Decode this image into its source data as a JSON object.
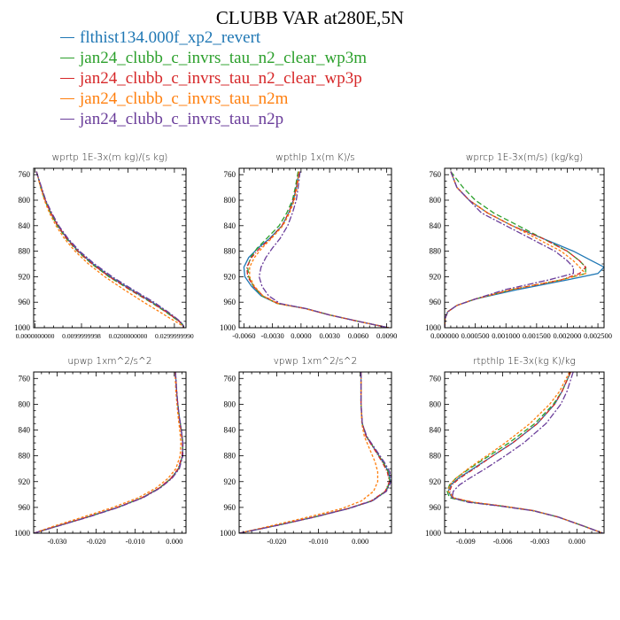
{
  "title": "CLUBB VAR at280E,5N",
  "colors": [
    "#1f77b4",
    "#2ca02c",
    "#d62728",
    "#ff7f0e",
    "#6a3d9a"
  ],
  "legend": [
    {
      "label": "flthist134.000f_xp2_revert",
      "color": "#1f77b4"
    },
    {
      "label": "jan24_clubb_c_invrs_tau_n2_clear_wp3m",
      "color": "#2ca02c"
    },
    {
      "label": "jan24_clubb_c_invrs_tau_n2_clear_wp3p",
      "color": "#d62728"
    },
    {
      "label": "jan24_clubb_c_invrs_tau_n2m",
      "color": "#ff7f0e"
    },
    {
      "label": "jan24_clubb_c_invrs_tau_n2p",
      "color": "#6a3d9a"
    }
  ],
  "chart_data": [
    {
      "type": "line",
      "title": "wprtp   1E-3x(m kg)/(s kg)",
      "xlim": [
        -0.0003,
        0.0325
      ],
      "ylim": [
        1000,
        750
      ],
      "yticks": [
        760,
        800,
        840,
        880,
        920,
        960,
        1000
      ],
      "ytick_labels": [
        "760",
        "800",
        "840",
        "880",
        "920",
        "960",
        "1000"
      ],
      "xticks": [
        0,
        0.01,
        0.02,
        0.03
      ],
      "xtick_labels": [
        "0.0000000000",
        "0.0099999998",
        "0.0200000000",
        "0.0299999990"
      ],
      "y": [
        755,
        760,
        780,
        800,
        820,
        840,
        860,
        880,
        900,
        920,
        940,
        960,
        975,
        985,
        990,
        995,
        1000
      ],
      "series": [
        {
          "color": "#1f77b4",
          "values": [
            0.0003,
            0.0005,
            0.0013,
            0.0022,
            0.0034,
            0.0049,
            0.0069,
            0.0093,
            0.0125,
            0.0162,
            0.0206,
            0.0252,
            0.0283,
            0.0302,
            0.0311,
            0.0318,
            0.032
          ]
        },
        {
          "color": "#2ca02c",
          "values": [
            0.0003,
            0.0005,
            0.0012,
            0.0021,
            0.0033,
            0.0048,
            0.0067,
            0.0091,
            0.0122,
            0.0159,
            0.0203,
            0.0249,
            0.0281,
            0.03,
            0.031,
            0.0317,
            0.032
          ]
        },
        {
          "color": "#d62728",
          "values": [
            0.0003,
            0.0005,
            0.0013,
            0.0022,
            0.0034,
            0.0049,
            0.0068,
            0.0092,
            0.0123,
            0.016,
            0.0204,
            0.025,
            0.0282,
            0.0301,
            0.031,
            0.0317,
            0.032
          ]
        },
        {
          "color": "#ff7f0e",
          "values": [
            0.0003,
            0.0005,
            0.0012,
            0.002,
            0.0031,
            0.0045,
            0.0063,
            0.0086,
            0.0115,
            0.015,
            0.0191,
            0.0234,
            0.0268,
            0.029,
            0.0302,
            0.0313,
            0.032
          ]
        },
        {
          "color": "#6a3d9a",
          "values": [
            0.0003,
            0.0005,
            0.0014,
            0.0023,
            0.0036,
            0.0051,
            0.0071,
            0.0096,
            0.0128,
            0.0166,
            0.021,
            0.0256,
            0.0286,
            0.0304,
            0.0312,
            0.0318,
            0.032
          ]
        }
      ]
    },
    {
      "type": "line",
      "title": "wpthlp   1x(m K)/s",
      "xlim": [
        -0.0065,
        0.0095
      ],
      "ylim": [
        1000,
        750
      ],
      "yticks": [
        760,
        800,
        840,
        880,
        920,
        960,
        1000
      ],
      "ytick_labels": [
        "760",
        "800",
        "840",
        "880",
        "920",
        "960",
        "1000"
      ],
      "xticks": [
        -0.006,
        -0.003,
        0,
        0.003,
        0.006,
        0.009
      ],
      "xtick_labels": [
        "-0.0060",
        "-0.0030",
        "0.0000",
        "0.0030",
        "0.0060",
        "0.0090"
      ],
      "y": [
        755,
        780,
        800,
        820,
        840,
        860,
        875,
        890,
        905,
        920,
        935,
        950,
        962,
        970,
        980,
        990,
        1000
      ],
      "series": [
        {
          "color": "#1f77b4",
          "values": [
            -0.0002,
            -0.0005,
            -0.0008,
            -0.0013,
            -0.002,
            -0.0033,
            -0.0045,
            -0.0055,
            -0.006,
            -0.0059,
            -0.0052,
            -0.0042,
            -0.0025,
            0.0005,
            0.003,
            0.006,
            0.0092
          ]
        },
        {
          "color": "#2ca02c",
          "values": [
            -0.0003,
            -0.0006,
            -0.0009,
            -0.0015,
            -0.0023,
            -0.0036,
            -0.0046,
            -0.0053,
            -0.0056,
            -0.0055,
            -0.005,
            -0.0041,
            -0.0025,
            0.0005,
            0.003,
            0.006,
            0.0092
          ]
        },
        {
          "color": "#d62728",
          "values": [
            -0.0002,
            -0.0005,
            -0.0008,
            -0.0013,
            -0.002,
            -0.0032,
            -0.0043,
            -0.0052,
            -0.0057,
            -0.0056,
            -0.005,
            -0.004,
            -0.0024,
            0.0005,
            0.003,
            0.006,
            0.0092
          ]
        },
        {
          "color": "#ff7f0e",
          "values": [
            -0.0002,
            -0.0004,
            -0.0007,
            -0.0012,
            -0.0019,
            -0.0031,
            -0.0041,
            -0.0049,
            -0.0054,
            -0.0054,
            -0.0049,
            -0.004,
            -0.0025,
            0.0004,
            0.003,
            0.006,
            0.0092
          ]
        },
        {
          "color": "#6a3d9a",
          "values": [
            -0.0001,
            -0.0003,
            -0.0005,
            -0.0009,
            -0.0014,
            -0.0022,
            -0.003,
            -0.0037,
            -0.0042,
            -0.0044,
            -0.0041,
            -0.0034,
            -0.0022,
            0.0005,
            0.003,
            0.006,
            0.0092
          ]
        }
      ]
    },
    {
      "type": "line",
      "title": "wprcp   1E-3x(m/s) (kg/kg)",
      "xlim": [
        0,
        0.0026
      ],
      "ylim": [
        1000,
        750
      ],
      "yticks": [
        760,
        800,
        840,
        880,
        920,
        960,
        1000
      ],
      "ytick_labels": [
        "760",
        "800",
        "840",
        "880",
        "920",
        "960",
        "1000"
      ],
      "xticks": [
        0,
        0.0005,
        0.001,
        0.0015,
        0.002,
        0.0025
      ],
      "xtick_labels": [
        "0.000000",
        "0.000500",
        "0.001000",
        "0.001500",
        "0.002000",
        "0.002500"
      ],
      "y": [
        755,
        780,
        800,
        820,
        840,
        860,
        880,
        895,
        905,
        915,
        925,
        940,
        955,
        965,
        975,
        985,
        1000
      ],
      "series": [
        {
          "color": "#1f77b4",
          "values": [
            0.0001,
            0.0002,
            0.0004,
            0.0007,
            0.0011,
            0.0016,
            0.0021,
            0.0024,
            0.0026,
            0.0025,
            0.002,
            0.0012,
            0.0005,
            0.0002,
            5e-05,
            1e-05,
            0
          ]
        },
        {
          "color": "#2ca02c",
          "values": [
            0.0001,
            0.0003,
            0.0005,
            0.0008,
            0.0012,
            0.0016,
            0.002,
            0.0022,
            0.0023,
            0.0023,
            0.0019,
            0.0011,
            0.0005,
            0.0002,
            5e-05,
            1e-05,
            0
          ]
        },
        {
          "color": "#d62728",
          "values": [
            0.0001,
            0.0002,
            0.0004,
            0.0007,
            0.0011,
            0.0016,
            0.002,
            0.0022,
            0.0023,
            0.0022,
            0.0019,
            0.0011,
            0.0005,
            0.0002,
            5e-05,
            1e-05,
            0
          ]
        },
        {
          "color": "#ff7f0e",
          "values": [
            0.0001,
            0.0002,
            0.0004,
            0.0007,
            0.0011,
            0.0015,
            0.0019,
            0.0021,
            0.0022,
            0.0023,
            0.0019,
            0.0011,
            0.0005,
            0.0002,
            5e-05,
            1e-05,
            0
          ]
        },
        {
          "color": "#6a3d9a",
          "values": [
            0.0001,
            0.0002,
            0.0004,
            0.0006,
            0.001,
            0.0014,
            0.0018,
            0.002,
            0.0021,
            0.0021,
            0.0017,
            0.001,
            0.0005,
            0.0002,
            5e-05,
            1e-05,
            0
          ]
        }
      ]
    },
    {
      "type": "line",
      "title": "upwp   1xm^2/s^2",
      "xlim": [
        -0.036,
        0.003
      ],
      "ylim": [
        1000,
        750
      ],
      "yticks": [
        760,
        800,
        840,
        880,
        920,
        960,
        1000
      ],
      "ytick_labels": [
        "760",
        "800",
        "840",
        "880",
        "920",
        "960",
        "1000"
      ],
      "xticks": [
        -0.03,
        -0.02,
        -0.01,
        0
      ],
      "xtick_labels": [
        "-0.030",
        "-0.020",
        "-0.010",
        "0.000"
      ],
      "y": [
        750,
        780,
        800,
        820,
        840,
        860,
        880,
        900,
        915,
        930,
        945,
        960,
        975,
        990,
        1000
      ],
      "series": [
        {
          "color": "#1f77b4",
          "values": [
            0.0003,
            0.0006,
            0.0009,
            0.0013,
            0.0018,
            0.0022,
            0.0021,
            0.0011,
            -0.0008,
            -0.0038,
            -0.0082,
            -0.0145,
            -0.0222,
            -0.0305,
            -0.036
          ]
        },
        {
          "color": "#2ca02c",
          "values": [
            0.0003,
            0.0006,
            0.0009,
            0.0013,
            0.0018,
            0.0022,
            0.0021,
            0.0011,
            -0.0008,
            -0.0038,
            -0.0082,
            -0.0145,
            -0.0222,
            -0.0305,
            -0.036
          ]
        },
        {
          "color": "#d62728",
          "values": [
            0.0003,
            0.0006,
            0.0009,
            0.0012,
            0.0017,
            0.0021,
            0.002,
            0.001,
            -0.0009,
            -0.0039,
            -0.0083,
            -0.0146,
            -0.0223,
            -0.0306,
            -0.036
          ]
        },
        {
          "color": "#ff7f0e",
          "values": [
            0.0002,
            0.0004,
            0.0007,
            0.001,
            0.0014,
            0.0017,
            0.0015,
            0.0004,
            -0.0016,
            -0.0047,
            -0.0092,
            -0.0157,
            -0.0234,
            -0.0313,
            -0.036
          ]
        },
        {
          "color": "#6a3d9a",
          "values": [
            0.0003,
            0.0006,
            0.0009,
            0.0013,
            0.0018,
            0.0022,
            0.0022,
            0.0013,
            -0.0006,
            -0.0036,
            -0.008,
            -0.0143,
            -0.022,
            -0.0304,
            -0.036
          ]
        }
      ]
    },
    {
      "type": "line",
      "title": "vpwp   1xm^2/s^2",
      "xlim": [
        -0.029,
        0.0075
      ],
      "ylim": [
        1000,
        750
      ],
      "yticks": [
        760,
        800,
        840,
        880,
        920,
        960,
        1000
      ],
      "ytick_labels": [
        "760",
        "800",
        "840",
        "880",
        "920",
        "960",
        "1000"
      ],
      "xticks": [
        -0.02,
        -0.01,
        0
      ],
      "xtick_labels": [
        "-0.020",
        "-0.010",
        "0.000"
      ],
      "y": [
        750,
        800,
        830,
        850,
        870,
        890,
        905,
        920,
        935,
        950,
        962,
        975,
        988,
        1000
      ],
      "series": [
        {
          "color": "#1f77b4",
          "values": [
            0.0002,
            0.0002,
            0.0005,
            0.0015,
            0.0035,
            0.0055,
            0.0068,
            0.0072,
            0.0062,
            0.0028,
            -0.003,
            -0.011,
            -0.02,
            -0.029
          ]
        },
        {
          "color": "#2ca02c",
          "values": [
            0.0002,
            0.0002,
            0.0005,
            0.0015,
            0.0035,
            0.0055,
            0.0067,
            0.0071,
            0.0061,
            0.0027,
            -0.003,
            -0.011,
            -0.02,
            -0.029
          ]
        },
        {
          "color": "#d62728",
          "values": [
            0.0002,
            0.0002,
            0.0005,
            0.0014,
            0.0034,
            0.0053,
            0.0065,
            0.007,
            0.006,
            0.0026,
            -0.0031,
            -0.0111,
            -0.0201,
            -0.029
          ]
        },
        {
          "color": "#ff7f0e",
          "values": [
            0.0002,
            0.0002,
            0.0004,
            0.001,
            0.0023,
            0.0036,
            0.0042,
            0.0042,
            0.0032,
            0.0003,
            -0.0045,
            -0.0125,
            -0.021,
            -0.029
          ]
        },
        {
          "color": "#6a3d9a",
          "values": [
            0.0002,
            0.0002,
            0.0005,
            0.0016,
            0.0037,
            0.0058,
            0.0071,
            0.0074,
            0.0063,
            0.0029,
            -0.0029,
            -0.0109,
            -0.0199,
            -0.029
          ]
        }
      ]
    },
    {
      "type": "line",
      "title": "rtpthlp   1E-3x(kg K)/kg",
      "xlim": [
        -0.0107,
        0.0022
      ],
      "ylim": [
        1000,
        750
      ],
      "yticks": [
        760,
        800,
        840,
        880,
        920,
        960,
        1000
      ],
      "ytick_labels": [
        "760",
        "800",
        "840",
        "880",
        "920",
        "960",
        "1000"
      ],
      "xticks": [
        -0.009,
        -0.006,
        -0.003,
        0
      ],
      "xtick_labels": [
        "-0.009",
        "-0.006",
        "-0.003",
        "0.000"
      ],
      "y": [
        750,
        780,
        800,
        830,
        860,
        880,
        900,
        915,
        925,
        935,
        945,
        952,
        958,
        965,
        975,
        990,
        1000
      ],
      "series": [
        {
          "color": "#1f77b4",
          "values": [
            -0.0005,
            -0.0012,
            -0.0018,
            -0.0032,
            -0.0052,
            -0.0068,
            -0.0084,
            -0.0096,
            -0.0102,
            -0.0104,
            -0.0101,
            -0.0085,
            -0.006,
            -0.0035,
            -0.0015,
            0.0007,
            0.0021
          ]
        },
        {
          "color": "#2ca02c",
          "values": [
            -0.0005,
            -0.0012,
            -0.0019,
            -0.0034,
            -0.0055,
            -0.0071,
            -0.0087,
            -0.0098,
            -0.0103,
            -0.0105,
            -0.0103,
            -0.0087,
            -0.0061,
            -0.0036,
            -0.0015,
            0.0007,
            0.0021
          ]
        },
        {
          "color": "#d62728",
          "values": [
            -0.0005,
            -0.0012,
            -0.0018,
            -0.0032,
            -0.0052,
            -0.0068,
            -0.0083,
            -0.0095,
            -0.0101,
            -0.0103,
            -0.01,
            -0.0084,
            -0.006,
            -0.0035,
            -0.0015,
            0.0007,
            0.0021
          ]
        },
        {
          "color": "#ff7f0e",
          "values": [
            -0.0006,
            -0.0014,
            -0.0022,
            -0.0038,
            -0.0058,
            -0.0073,
            -0.0088,
            -0.0098,
            -0.0103,
            -0.0104,
            -0.01,
            -0.0084,
            -0.006,
            -0.0035,
            -0.0015,
            0.0007,
            0.0021
          ]
        },
        {
          "color": "#6a3d9a",
          "values": [
            -0.0003,
            -0.0008,
            -0.0013,
            -0.0025,
            -0.0043,
            -0.0058,
            -0.0074,
            -0.0087,
            -0.0095,
            -0.01,
            -0.0101,
            -0.0088,
            -0.0062,
            -0.0036,
            -0.0015,
            0.0007,
            0.0021
          ]
        }
      ]
    }
  ]
}
